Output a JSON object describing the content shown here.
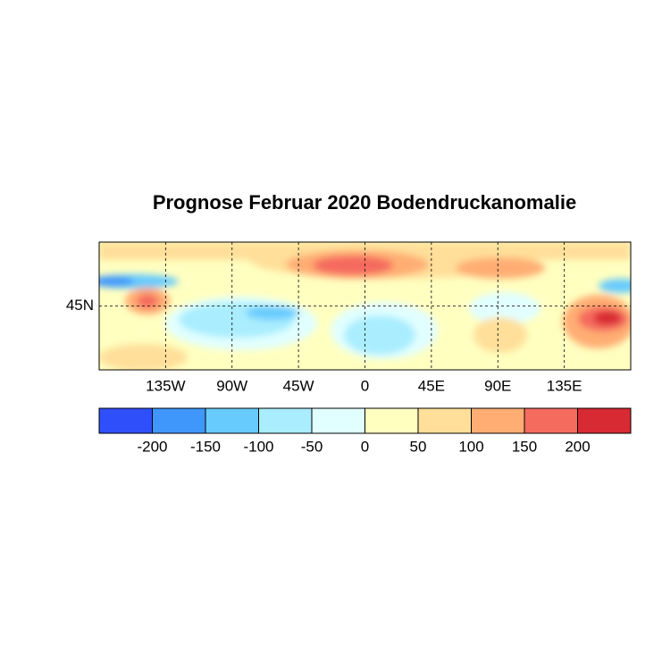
{
  "title": "Prognose Februar 2020 Bodendruckanomalie",
  "map": {
    "lonlim": [
      -180,
      180
    ],
    "latlim": [
      0,
      90
    ],
    "lon_ticks": [
      {
        "value": -135,
        "label": "135W"
      },
      {
        "value": -90,
        "label": "90W"
      },
      {
        "value": -45,
        "label": "45W"
      },
      {
        "value": 0,
        "label": "0"
      },
      {
        "value": 45,
        "label": "45E"
      },
      {
        "value": 90,
        "label": "90E"
      },
      {
        "value": 135,
        "label": "135E"
      }
    ],
    "lat_ticks": [
      {
        "value": 45,
        "label": "45N"
      }
    ]
  },
  "colorbar": {
    "levels": [
      -200,
      -150,
      -100,
      -50,
      0,
      50,
      100,
      150,
      200
    ],
    "colors": [
      "#2f4ffa",
      "#3f97fb",
      "#67cbfd",
      "#a9edff",
      "#e1ffff",
      "#ffffc0",
      "#ffdf9a",
      "#ffad73",
      "#f56b5e",
      "#d82a33"
    ]
  }
}
